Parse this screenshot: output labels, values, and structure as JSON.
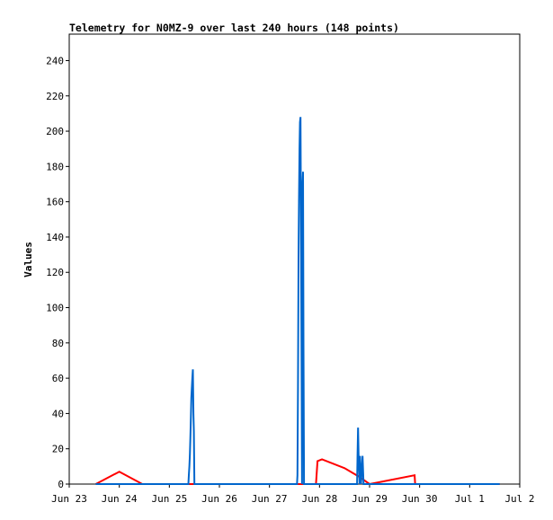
{
  "chart_data": {
    "type": "line",
    "title": "Telemetry for N0MZ-9 over last 240 hours (148 points)",
    "ylabel": "Values",
    "xlabel": "",
    "ylim": [
      0,
      255
    ],
    "yticks": [
      0,
      20,
      40,
      60,
      80,
      100,
      120,
      140,
      160,
      180,
      200,
      220,
      240
    ],
    "xlim": [
      0,
      9
    ],
    "xticks": [
      {
        "x": 0,
        "label": "Jun 23"
      },
      {
        "x": 1,
        "label": "Jun 24"
      },
      {
        "x": 2,
        "label": "Jun 25"
      },
      {
        "x": 3,
        "label": "Jun 26"
      },
      {
        "x": 4,
        "label": "Jun 27"
      },
      {
        "x": 5,
        "label": "Jun 28"
      },
      {
        "x": 6,
        "label": "Jun 29"
      },
      {
        "x": 7,
        "label": "Jun 30"
      },
      {
        "x": 8,
        "label": "Jul 1"
      },
      {
        "x": 9,
        "label": "Jul 2"
      }
    ],
    "series": [
      {
        "color": "#ff0000",
        "points": [
          [
            0.53,
            0
          ],
          [
            1.0,
            7
          ],
          [
            1.46,
            0
          ],
          [
            2.7,
            0
          ],
          [
            4.0,
            0
          ],
          [
            4.93,
            0
          ],
          [
            4.96,
            13
          ],
          [
            5.05,
            14
          ],
          [
            5.5,
            9
          ],
          [
            5.8,
            4
          ],
          [
            6.0,
            0
          ],
          [
            6.9,
            5
          ],
          [
            6.91,
            0
          ],
          [
            7.5,
            0
          ],
          [
            8.6,
            0
          ]
        ]
      },
      {
        "color": "#0066cc",
        "points": [
          [
            0.53,
            0
          ],
          [
            2.38,
            0
          ],
          [
            2.39,
            5
          ],
          [
            2.4,
            10
          ],
          [
            2.41,
            17
          ],
          [
            2.42,
            26
          ],
          [
            2.43,
            38
          ],
          [
            2.44,
            49
          ],
          [
            2.45,
            55
          ],
          [
            2.46,
            60
          ],
          [
            2.47,
            65
          ],
          [
            2.48,
            40
          ],
          [
            2.49,
            30
          ],
          [
            2.5,
            0
          ],
          [
            4.55,
            0
          ],
          [
            4.56,
            5
          ],
          [
            4.57,
            55
          ],
          [
            4.58,
            128
          ],
          [
            4.59,
            160
          ],
          [
            4.6,
            190
          ],
          [
            4.61,
            205
          ],
          [
            4.62,
            208
          ],
          [
            4.63,
            150
          ],
          [
            4.64,
            80
          ],
          [
            4.65,
            0
          ],
          [
            4.66,
            170
          ],
          [
            4.67,
            177
          ],
          [
            4.68,
            80
          ],
          [
            4.69,
            0
          ],
          [
            5.75,
            0
          ],
          [
            5.76,
            16
          ],
          [
            5.77,
            32
          ],
          [
            5.78,
            16
          ],
          [
            5.8,
            0
          ],
          [
            5.81,
            16
          ],
          [
            5.83,
            0
          ],
          [
            5.86,
            16
          ],
          [
            5.88,
            0
          ],
          [
            8.6,
            0
          ]
        ]
      }
    ]
  }
}
